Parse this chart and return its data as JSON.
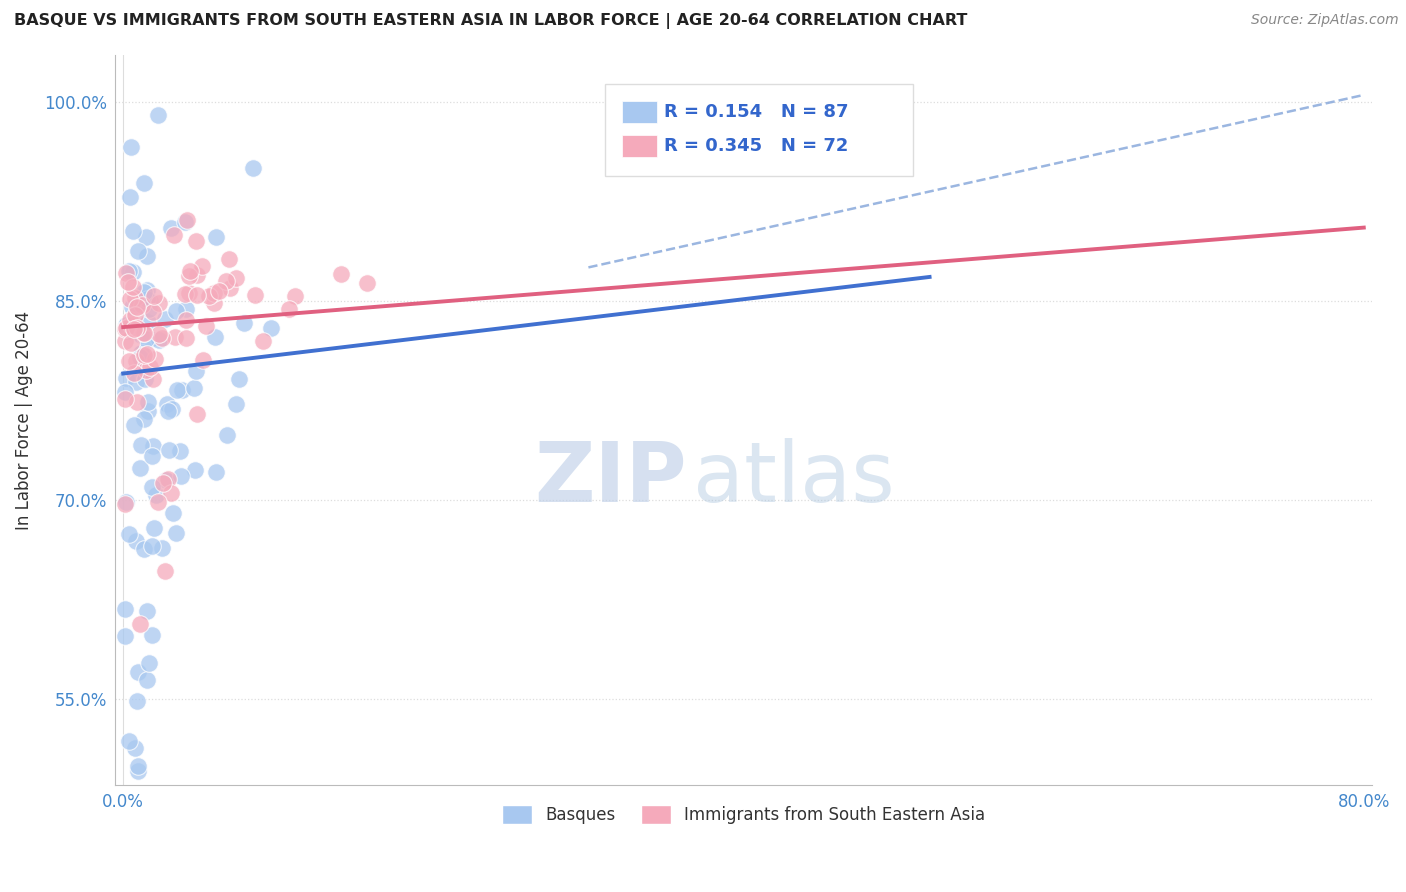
{
  "title": "BASQUE VS IMMIGRANTS FROM SOUTH EASTERN ASIA IN LABOR FORCE | AGE 20-64 CORRELATION CHART",
  "source": "Source: ZipAtlas.com",
  "ylabel": "In Labor Force | Age 20-64",
  "xlim": [
    -0.005,
    0.805
  ],
  "ylim": [
    0.485,
    1.035
  ],
  "xticks": [
    0.0,
    0.1,
    0.2,
    0.3,
    0.4,
    0.5,
    0.6,
    0.7,
    0.8
  ],
  "xtick_labels": [
    "0.0%",
    "",
    "",
    "",
    "",
    "",
    "",
    "",
    "80.0%"
  ],
  "yticks": [
    0.55,
    0.7,
    0.85,
    1.0
  ],
  "ytick_labels": [
    "55.0%",
    "70.0%",
    "85.0%",
    "100.0%"
  ],
  "blue_color": "#A8C8F0",
  "pink_color": "#F5AABB",
  "blue_line_color": "#4070D0",
  "pink_line_color": "#E06080",
  "dashed_line_color": "#90AEDD",
  "legend_label_blue": "Basques",
  "legend_label_pink": "Immigrants from South Eastern Asia",
  "watermark_zip": "ZIP",
  "watermark_atlas": "atlas",
  "grid_color": "#DDDDDD",
  "background_color": "#FFFFFF",
  "title_color": "#222222",
  "source_color": "#888888",
  "tick_color": "#4488CC",
  "ylabel_color": "#333333"
}
